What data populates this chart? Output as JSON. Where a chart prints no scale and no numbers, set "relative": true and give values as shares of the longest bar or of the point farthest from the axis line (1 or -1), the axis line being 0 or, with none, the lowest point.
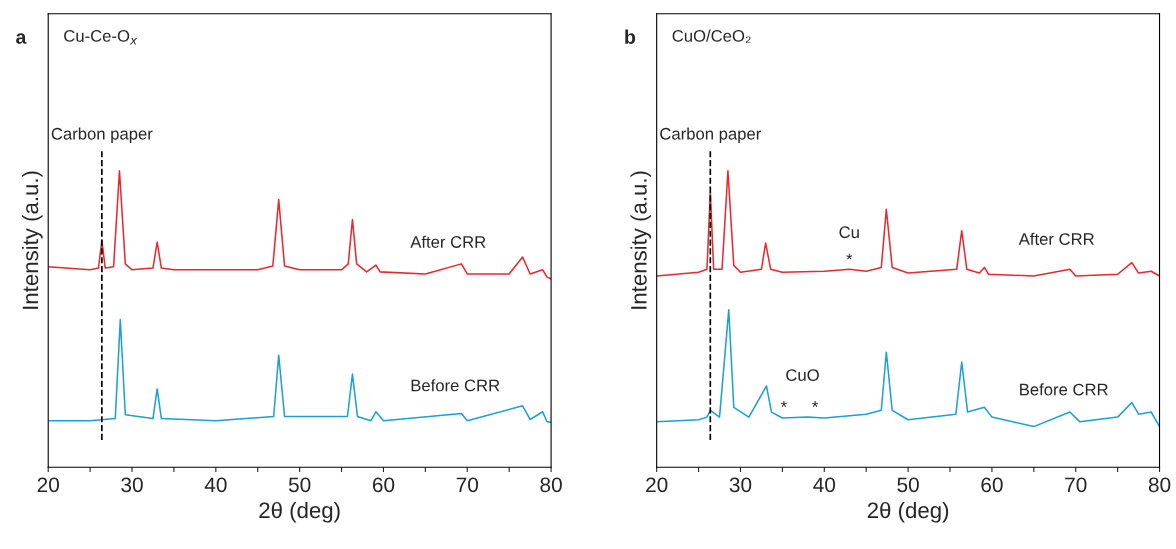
{
  "chart_data": [
    {
      "type": "line",
      "title": "Cu-Ce-O$_{x}$",
      "xlabel": "2θ (deg)",
      "ylabel": "Intensity (a.u.)",
      "relative": true,
      "legend": false,
      "grid": false,
      "line_style": "solid",
      "marker": "none",
      "xlim": [
        20,
        80
      ],
      "xticks": [
        20,
        {
          "value": 25,
          "label": null
        },
        30,
        {
          "value": 35,
          "label": null
        },
        40,
        {
          "value": 45,
          "label": null
        },
        50,
        {
          "value": 55,
          "label": null
        },
        60,
        {
          "value": 65,
          "label": null
        },
        70,
        {
          "value": 75,
          "label": null
        },
        80
      ],
      "tick_labels": "x",
      "annotations": [
        "a"
      ],
      "ref_lines": [
        {
          "axis": "x",
          "value": 26.4,
          "label": "Carbon paper",
          "color": "#000000",
          "line_style": "dashed"
        }
      ],
      "series": [
        {
          "name": "After CRR",
          "color": "#e8282e",
          "x": [
            20,
            25,
            26.0,
            26.4,
            26.8,
            27.8,
            28.5,
            29.2,
            30,
            32.5,
            33.0,
            33.5,
            35,
            40,
            45,
            46.8,
            47.5,
            48.2,
            50,
            55,
            55.8,
            56.3,
            56.8,
            58,
            59.1,
            59.6,
            65,
            69.3,
            70,
            75,
            76.6,
            77.5,
            79,
            79.5,
            80
          ],
          "values": [
            0.676,
            0.666,
            0.672,
            0.766,
            0.672,
            0.676,
            1.0,
            0.686,
            0.666,
            0.672,
            0.759,
            0.672,
            0.666,
            0.666,
            0.666,
            0.679,
            0.903,
            0.679,
            0.666,
            0.666,
            0.686,
            0.836,
            0.686,
            0.659,
            0.682,
            0.659,
            0.652,
            0.686,
            0.652,
            0.652,
            0.709,
            0.652,
            0.666,
            0.642,
            0.635
          ]
        },
        {
          "name": "Before CRR",
          "color": "#1a9fd9",
          "x": [
            20,
            25,
            28,
            28.6,
            29.2,
            32.5,
            33.0,
            33.5,
            40,
            46.9,
            47.5,
            48.2,
            55.7,
            56.3,
            56.9,
            58.5,
            59.1,
            60,
            69.3,
            70,
            76.6,
            77.5,
            79.0,
            79.5,
            80
          ],
          "values": [
            0.157,
            0.157,
            0.164,
            0.498,
            0.177,
            0.164,
            0.264,
            0.164,
            0.157,
            0.171,
            0.378,
            0.171,
            0.171,
            0.314,
            0.171,
            0.157,
            0.187,
            0.157,
            0.181,
            0.157,
            0.207,
            0.161,
            0.187,
            0.154,
            0.151
          ]
        }
      ]
    },
    {
      "type": "line",
      "title": "CuO/CeO₂",
      "xlabel": "2θ (deg)",
      "ylabel": "Intensity (a.u.)",
      "relative": true,
      "legend": false,
      "grid": false,
      "line_style": "solid",
      "marker": "none",
      "xlim": [
        20,
        80
      ],
      "xticks": [
        20,
        {
          "value": 25,
          "label": null
        },
        30,
        {
          "value": 35,
          "label": null
        },
        40,
        {
          "value": 45,
          "label": null
        },
        50,
        {
          "value": 55,
          "label": null
        },
        60,
        {
          "value": 65,
          "label": null
        },
        70,
        {
          "value": 75,
          "label": null
        },
        80
      ],
      "tick_labels": "x",
      "annotations": [
        "b",
        "Cu",
        "*",
        "CuO",
        "*",
        "*"
      ],
      "ref_lines": [
        {
          "axis": "x",
          "value": 26.4,
          "label": "Carbon paper",
          "color": "#000000",
          "line_style": "dashed"
        }
      ],
      "series": [
        {
          "name": "After CRR",
          "color": "#e8282e",
          "x": [
            20,
            25,
            26.0,
            26.4,
            26.8,
            27.8,
            28.5,
            29.2,
            30,
            32.5,
            33.0,
            33.6,
            35,
            40,
            43,
            45,
            46.8,
            47.4,
            48.1,
            50,
            55.8,
            56.4,
            57.0,
            58.5,
            59.1,
            59.6,
            65,
            69.3,
            70,
            75,
            76.7,
            77.5,
            79,
            80
          ],
          "values": [
            0.645,
            0.658,
            0.668,
            0.928,
            0.668,
            0.668,
            1.0,
            0.681,
            0.658,
            0.668,
            0.756,
            0.668,
            0.658,
            0.661,
            0.668,
            0.661,
            0.674,
            0.87,
            0.674,
            0.655,
            0.668,
            0.798,
            0.668,
            0.655,
            0.674,
            0.651,
            0.645,
            0.668,
            0.645,
            0.651,
            0.69,
            0.655,
            0.661,
            0.645
          ]
        },
        {
          "name": "Before CRR",
          "color": "#1a9fd9",
          "x": [
            20,
            25,
            26.0,
            26.4,
            27.5,
            28.6,
            29.2,
            31,
            33.1,
            33.7,
            35,
            38,
            40,
            45,
            46.8,
            47.4,
            48.1,
            50,
            55.7,
            56.4,
            57.1,
            59.1,
            60,
            65,
            69.3,
            70.5,
            75,
            76.7,
            77.5,
            79,
            80
          ],
          "values": [
            0.153,
            0.16,
            0.169,
            0.192,
            0.169,
            0.531,
            0.202,
            0.169,
            0.274,
            0.186,
            0.166,
            0.169,
            0.166,
            0.179,
            0.192,
            0.388,
            0.192,
            0.16,
            0.179,
            0.355,
            0.186,
            0.202,
            0.169,
            0.137,
            0.186,
            0.153,
            0.169,
            0.218,
            0.179,
            0.186,
            0.137
          ]
        }
      ]
    }
  ]
}
